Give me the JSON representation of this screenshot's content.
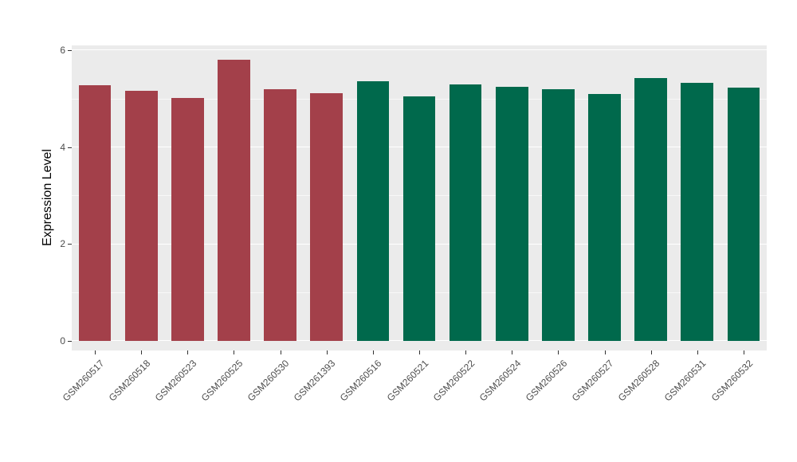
{
  "chart_data": {
    "type": "bar",
    "title": "",
    "xlabel": "",
    "ylabel": "Expression Level",
    "categories": [
      "GSM260517",
      "GSM260518",
      "GSM260523",
      "GSM260525",
      "GSM260530",
      "GSM261393",
      "GSM260516",
      "GSM260521",
      "GSM260522",
      "GSM260524",
      "GSM260526",
      "GSM260527",
      "GSM260528",
      "GSM260531",
      "GSM260532"
    ],
    "values": [
      5.27,
      5.16,
      5.01,
      5.81,
      5.19,
      5.12,
      5.36,
      5.05,
      5.3,
      5.24,
      5.2,
      5.1,
      5.43,
      5.32,
      5.23
    ],
    "groups": [
      0,
      0,
      0,
      0,
      0,
      0,
      1,
      1,
      1,
      1,
      1,
      1,
      1,
      1,
      1
    ],
    "group_colors": [
      "#A3404A",
      "#00694C"
    ],
    "ylim": [
      0,
      6
    ],
    "yticks": [
      0,
      2,
      4,
      6
    ],
    "minor_yticks": [
      1,
      3,
      5
    ],
    "grid": "on",
    "legend": "none",
    "panel_background": "#EBEBEB",
    "grid_color": "#FFFFFF",
    "tick_label_color": "#4D4D4D",
    "axis_title_color": "#000000"
  }
}
